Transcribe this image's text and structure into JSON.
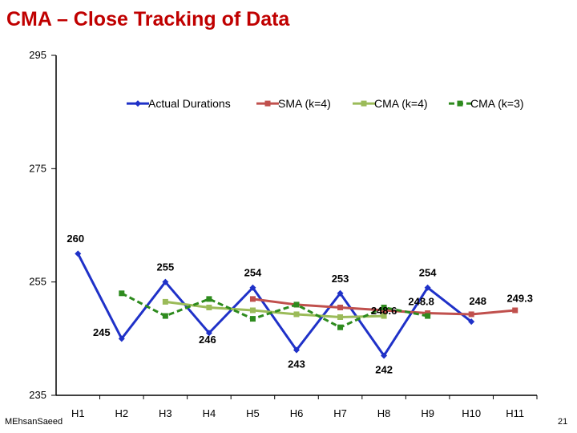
{
  "slide": {
    "title": "CMA – Close Tracking of Data",
    "author": "MEhsanSaeed",
    "page_number": "21"
  },
  "chart_data": {
    "type": "line",
    "title": "",
    "xlabel": "",
    "ylabel": "",
    "ylim": [
      235,
      295
    ],
    "yticks": [
      235,
      255,
      275,
      295
    ],
    "categories": [
      "H1",
      "H2",
      "H3",
      "H4",
      "H5",
      "H6",
      "H7",
      "H8",
      "H9",
      "H10",
      "H11"
    ],
    "legend_position": "top",
    "grid": false,
    "series": [
      {
        "name": "Actual Durations",
        "color": "#1f31c8",
        "style": "solid",
        "marker": "diamond",
        "values": [
          260,
          245,
          255,
          246,
          254,
          243,
          253,
          242,
          254,
          248,
          null
        ]
      },
      {
        "name": "SMA (k=4)",
        "color": "#c0504d",
        "style": "solid",
        "marker": "square",
        "values": [
          null,
          null,
          null,
          null,
          252,
          251,
          250.5,
          250,
          249.5,
          249.3,
          250
        ]
      },
      {
        "name": "CMA (k=4)",
        "color": "#9bbb59",
        "style": "solid",
        "marker": "square",
        "values": [
          null,
          null,
          251.5,
          250.5,
          250,
          249.3,
          248.8,
          249,
          null,
          null,
          null
        ]
      },
      {
        "name": "CMA (k=3)",
        "color": "#2e8b1e",
        "style": "dashed",
        "marker": "square",
        "values": [
          null,
          253,
          249,
          252,
          248.5,
          251,
          247,
          250.5,
          249,
          null,
          null
        ]
      }
    ],
    "data_labels": [
      {
        "text": "260",
        "category": "H1",
        "value": 260
      },
      {
        "text": "245",
        "category": "H1",
        "value": 245
      },
      {
        "text": "255",
        "category": "H3",
        "value": 255
      },
      {
        "text": "246",
        "category": "H4",
        "value": 246
      },
      {
        "text": "254",
        "category": "H5",
        "value": 254
      },
      {
        "text": "243",
        "category": "H6",
        "value": 243
      },
      {
        "text": "253",
        "category": "H7",
        "value": 253
      },
      {
        "text": "248.6",
        "category": "H8",
        "value": 248.6
      },
      {
        "text": "242",
        "category": "H8",
        "value": 242
      },
      {
        "text": "254",
        "category": "H9",
        "value": 254
      },
      {
        "text": "248.8",
        "category": "H9",
        "value": 248.8
      },
      {
        "text": "248",
        "category": "H10",
        "value": 248
      },
      {
        "text": "249.3",
        "category": "H11",
        "value": 249.3
      }
    ]
  }
}
